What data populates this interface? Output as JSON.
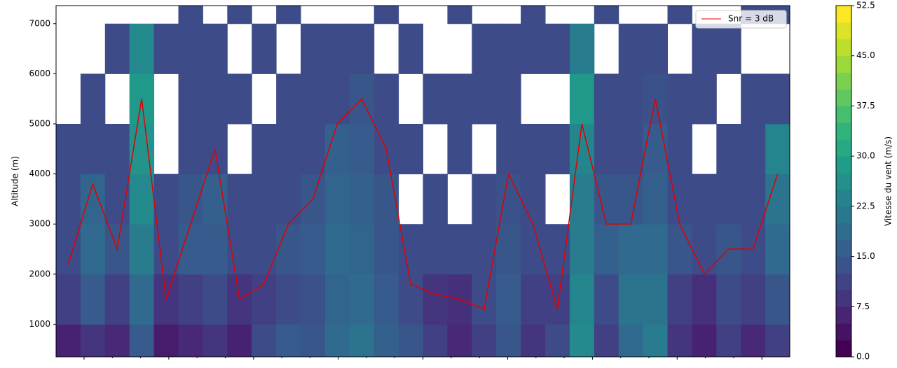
{
  "chart_data": {
    "type": "heatmap",
    "y_label": "Altitude (m)",
    "colorbar_label": "Vitesse du vent (m/s)",
    "ylim": [
      350,
      7360
    ],
    "yticks": [
      1000,
      2000,
      3000,
      4000,
      5000,
      6000,
      7000
    ],
    "y_edges": [
      350,
      1000,
      2000,
      3000,
      4000,
      5000,
      6000,
      7000,
      7360
    ],
    "zlim": [
      0,
      52.5
    ],
    "zticks": [
      {
        "value": 0,
        "label": "0.0"
      },
      {
        "value": 7.5,
        "label": "7.5"
      },
      {
        "value": 15,
        "label": "15.0"
      },
      {
        "value": 22.5,
        "label": "22.5"
      },
      {
        "value": 30,
        "label": "30.0"
      },
      {
        "value": 37.5,
        "label": "37.5"
      },
      {
        "value": 45,
        "label": "45.0"
      },
      {
        "value": 52.5,
        "label": "52.5"
      }
    ],
    "values": [
      [
        5,
        10,
        12,
        12,
        12,
        null,
        null,
        null
      ],
      [
        8,
        15,
        18,
        17,
        12,
        12,
        null,
        null
      ],
      [
        6,
        10,
        14,
        12,
        12,
        null,
        12,
        null
      ],
      [
        15,
        18,
        22,
        25,
        27,
        28,
        25,
        null
      ],
      [
        4,
        8,
        12,
        12,
        null,
        null,
        12,
        null
      ],
      [
        6,
        10,
        15,
        14,
        12,
        12,
        12,
        12
      ],
      [
        8,
        12,
        15,
        16,
        12,
        12,
        12,
        null
      ],
      [
        5,
        8,
        12,
        12,
        null,
        12,
        null,
        12
      ],
      [
        12,
        10,
        12,
        12,
        12,
        null,
        12,
        null
      ],
      [
        15,
        12,
        14,
        12,
        12,
        12,
        null,
        12
      ],
      [
        14,
        13,
        15,
        14,
        12,
        12,
        12,
        null
      ],
      [
        18,
        17,
        18,
        17,
        16,
        12,
        12,
        null
      ],
      [
        20,
        18,
        17,
        16,
        15,
        14,
        12,
        null
      ],
      [
        16,
        15,
        14,
        14,
        12,
        12,
        null,
        12
      ],
      [
        14,
        12,
        12,
        null,
        12,
        null,
        12,
        null
      ],
      [
        10,
        8,
        12,
        12,
        null,
        12,
        null,
        null
      ],
      [
        6,
        7,
        12,
        null,
        12,
        12,
        null,
        12
      ],
      [
        10,
        12,
        12,
        12,
        null,
        12,
        12,
        null
      ],
      [
        14,
        15,
        14,
        13,
        12,
        12,
        12,
        null
      ],
      [
        8,
        10,
        12,
        12,
        12,
        null,
        12,
        12
      ],
      [
        12,
        10,
        12,
        null,
        12,
        null,
        12,
        null
      ],
      [
        25,
        24,
        22,
        22,
        24,
        28,
        22,
        null
      ],
      [
        10,
        12,
        16,
        14,
        12,
        12,
        null,
        12
      ],
      [
        18,
        20,
        18,
        14,
        12,
        12,
        12,
        null
      ],
      [
        22,
        20,
        18,
        16,
        15,
        13,
        12,
        null
      ],
      [
        8,
        10,
        14,
        12,
        12,
        12,
        null,
        12
      ],
      [
        5,
        7,
        12,
        12,
        null,
        12,
        12,
        null
      ],
      [
        10,
        12,
        14,
        12,
        12,
        null,
        12,
        null
      ],
      [
        6,
        10,
        12,
        12,
        12,
        12,
        null,
        12
      ],
      [
        10,
        14,
        18,
        20,
        24,
        12,
        null,
        12
      ]
    ],
    "series": [
      {
        "name": "Snr = 3 dB",
        "color": "#e00000",
        "values": [
          2200,
          3800,
          2500,
          5500,
          1500,
          3000,
          4500,
          1500,
          1800,
          3000,
          3500,
          5000,
          5500,
          4500,
          1800,
          1600,
          1500,
          1300,
          4000,
          3000,
          1300,
          5000,
          3000,
          3000,
          5500,
          3000,
          2000,
          2500,
          2500,
          4000
        ]
      }
    ],
    "legend": "upper right"
  }
}
